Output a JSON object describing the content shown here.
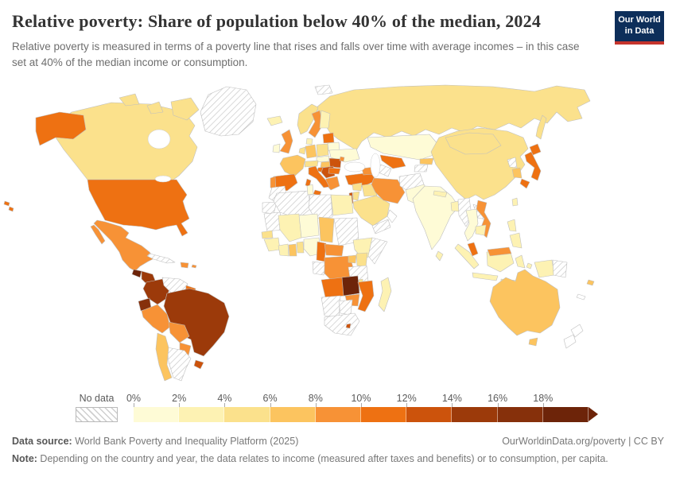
{
  "header": {
    "title": "Relative poverty: Share of population below 40% of the median, 2024",
    "subtitle": "Relative poverty is measured in terms of a poverty line that rises and falls over time with average incomes – in this case set at 40% of the median income or consumption."
  },
  "logo": {
    "line1": "Our World",
    "line2": "in Data",
    "bg_color": "#0d2e5a",
    "accent_color": "#c5342c"
  },
  "footer": {
    "datasource_label": "Data source:",
    "datasource_text": " World Bank Poverty and Inequality Platform (2025)",
    "right_text": "OurWorldinData.org/poverty | CC BY",
    "note_label": "Note:",
    "note_text": " Depending on the country and year, the data relates to income (measured after taxes and benefits) or to consumption, per capita."
  },
  "chart_data": {
    "type": "choropleth-map",
    "title": "Relative poverty: Share of population below 40% of the median, 2024",
    "unit": "% of population below 40% of median income/consumption",
    "legend": {
      "position": "bottom",
      "no_data_label": "No data",
      "boundary_labels": [
        "0%",
        "2%",
        "4%",
        "6%",
        "8%",
        "10%",
        "12%",
        "14%",
        "16%",
        "18%"
      ],
      "bins": [
        {
          "range": "0–2%",
          "color": "#fefbd6"
        },
        {
          "range": "2–4%",
          "color": "#fdf2b3"
        },
        {
          "range": "4–6%",
          "color": "#fbe18c"
        },
        {
          "range": "6–8%",
          "color": "#fcc45f"
        },
        {
          "range": "8–10%",
          "color": "#f79236"
        },
        {
          "range": "10–12%",
          "color": "#ee7112"
        },
        {
          "range": "12–14%",
          "color": "#cc530c"
        },
        {
          "range": "14–16%",
          "color": "#9c3a0a"
        },
        {
          "range": "16–18%",
          "color": "#86300b"
        },
        {
          "range": "18%+",
          "color": "#6d2409"
        }
      ]
    }
  },
  "map": {
    "regions": {
      "greenland": {
        "label": "Greenland",
        "value": "No data",
        "color": "nodata"
      },
      "canada": {
        "label": "Canada",
        "value": "4–6%",
        "color": "#fbe18c"
      },
      "alaska": {
        "label": "United States (Alaska)",
        "value": "10–12%",
        "color": "#ee7112"
      },
      "usa": {
        "label": "United States",
        "value": "10–12%",
        "color": "#ee7112"
      },
      "hawaii": {
        "label": "United States (Hawaii)",
        "value": "10–12%",
        "color": "#ee7112"
      },
      "mexico": {
        "label": "Mexico",
        "value": "8–10%",
        "color": "#f79236"
      },
      "guatemala": {
        "label": "Guatemala",
        "value": "18%+",
        "color": "#6d2409"
      },
      "honduras-nicaragua": {
        "label": "Honduras / Nicaragua",
        "value": "14–16%",
        "color": "#9c3a0a"
      },
      "costa-rica": {
        "label": "Costa Rica",
        "value": "12–14%",
        "color": "#cc530c"
      },
      "panama": {
        "label": "Panama",
        "value": "18%+",
        "color": "#6d2409"
      },
      "cuba": {
        "label": "Cuba",
        "value": "No data",
        "color": "nodata"
      },
      "hispaniola": {
        "label": "Dominican Republic / Haiti",
        "value": "8–10%",
        "color": "#f79236"
      },
      "puerto-rico": {
        "label": "Puerto Rico",
        "value": "8–10%",
        "color": "#f79236"
      },
      "colombia": {
        "label": "Colombia",
        "value": "14–16%",
        "color": "#9c3a0a"
      },
      "venezuela": {
        "label": "Venezuela",
        "value": "No data",
        "color": "nodata"
      },
      "guyana": {
        "label": "Guyana / Suriname",
        "value": "10–12%",
        "color": "#ee7112"
      },
      "ecuador": {
        "label": "Ecuador",
        "value": "16–18%",
        "color": "#86300b"
      },
      "peru": {
        "label": "Peru",
        "value": "8–10%",
        "color": "#f79236"
      },
      "brazil": {
        "label": "Brazil",
        "value": "14–16%",
        "color": "#9c3a0a"
      },
      "bolivia": {
        "label": "Bolivia",
        "value": "8–10%",
        "color": "#f79236"
      },
      "paraguay": {
        "label": "Paraguay",
        "value": "8–10%",
        "color": "#f79236"
      },
      "uruguay": {
        "label": "Uruguay",
        "value": "12–14%",
        "color": "#cc530c"
      },
      "chile": {
        "label": "Chile",
        "value": "6–8%",
        "color": "#fcc45f"
      },
      "argentina": {
        "label": "Argentina",
        "value": "No data",
        "color": "nodata"
      },
      "iceland": {
        "label": "Iceland",
        "value": "2–4%",
        "color": "#fdf2b3"
      },
      "norway": {
        "label": "Norway",
        "value": "4–6%",
        "color": "#fbe18c"
      },
      "sweden": {
        "label": "Sweden",
        "value": "8–10%",
        "color": "#f79236"
      },
      "finland": {
        "label": "Finland",
        "value": "2–4%",
        "color": "#fdf2b3"
      },
      "denmark": {
        "label": "Denmark",
        "value": "2–4%",
        "color": "#fdf2b3"
      },
      "uk": {
        "label": "United Kingdom",
        "value": "8–10%",
        "color": "#f79236"
      },
      "ireland": {
        "label": "Ireland",
        "value": "0–2%",
        "color": "#fefbd6"
      },
      "france": {
        "label": "France",
        "value": "6–8%",
        "color": "#fcc45f"
      },
      "spain": {
        "label": "Spain",
        "value": "10–12%",
        "color": "#ee7112"
      },
      "portugal": {
        "label": "Portugal",
        "value": "8–10%",
        "color": "#f79236"
      },
      "germany": {
        "label": "Germany",
        "value": "6–8%",
        "color": "#fcc45f"
      },
      "benelux": {
        "label": "Belgium / Netherlands",
        "value": "4–6%",
        "color": "#fbe18c"
      },
      "poland": {
        "label": "Poland",
        "value": "4–6%",
        "color": "#fbe18c"
      },
      "czech-slovakia": {
        "label": "Czechia / Slovakia",
        "value": "0–2%",
        "color": "#fefbd6"
      },
      "austria-switzerland": {
        "label": "Austria / Switzerland",
        "value": "4–6%",
        "color": "#fbe18c"
      },
      "hungary": {
        "label": "Hungary",
        "value": "6–8%",
        "color": "#fcc45f"
      },
      "romania": {
        "label": "Romania",
        "value": "12–14%",
        "color": "#cc530c"
      },
      "moldova": {
        "label": "Moldova",
        "value": "8–10%",
        "color": "#f79236"
      },
      "ukraine": {
        "label": "Ukraine",
        "value": "0–2%",
        "color": "#fefbd6"
      },
      "belarus": {
        "label": "Belarus",
        "value": "0–2%",
        "color": "#fefbd6"
      },
      "baltics": {
        "label": "Baltic states",
        "value": "10–12%",
        "color": "#ee7112"
      },
      "croatia": {
        "label": "Croatia",
        "value": "10–12%",
        "color": "#ee7112"
      },
      "serbia-balkans": {
        "label": "Serbia / Western Balkans",
        "value": "12–14%",
        "color": "#cc530c"
      },
      "greece": {
        "label": "Greece",
        "value": "8–10%",
        "color": "#f79236"
      },
      "bulgaria": {
        "label": "Bulgaria",
        "value": "10–12%",
        "color": "#ee7112"
      },
      "italy": {
        "label": "Italy",
        "value": "10–12%",
        "color": "#ee7112"
      },
      "russia": {
        "label": "Russia",
        "value": "4–6%",
        "color": "#fbe18c"
      },
      "svalbard": {
        "label": "Svalbard",
        "value": "No data",
        "color": "nodata"
      },
      "turkey": {
        "label": "Turkey",
        "value": "10–12%",
        "color": "#ee7112"
      },
      "caucasus": {
        "label": "Georgia / Armenia / Azerbaijan",
        "value": "8–10%",
        "color": "#f79236"
      },
      "syria": {
        "label": "Syria",
        "value": "4–6%",
        "color": "#fbe18c"
      },
      "iraq": {
        "label": "Iraq",
        "value": "4–6%",
        "color": "#fbe18c"
      },
      "israel": {
        "label": "Israel",
        "value": "12–14%",
        "color": "#cc530c"
      },
      "jordan": {
        "label": "Jordan",
        "value": "4–6%",
        "color": "#fbe18c"
      },
      "saudi-arabia": {
        "label": "Saudi Arabia",
        "value": "4–6%",
        "color": "#fbe18c"
      },
      "yemen": {
        "label": "Yemen",
        "value": "No data",
        "color": "nodata"
      },
      "oman": {
        "label": "Oman",
        "value": "No data",
        "color": "#ffffff"
      },
      "iran": {
        "label": "Iran",
        "value": "8–10%",
        "color": "#f79236"
      },
      "kazakhstan": {
        "label": "Kazakhstan",
        "value": "0–2%",
        "color": "#fefbd6"
      },
      "uzbekistan": {
        "label": "Uzbekistan",
        "value": "10–12%",
        "color": "#ee7112"
      },
      "turkmenistan": {
        "label": "Turkmenistan",
        "value": "No data",
        "color": "nodata"
      },
      "kyrgyzstan": {
        "label": "Kyrgyzstan",
        "value": "6–8%",
        "color": "#fcc45f"
      },
      "tajikistan": {
        "label": "Tajikistan",
        "value": "No data",
        "color": "nodata"
      },
      "afghanistan": {
        "label": "Afghanistan",
        "value": "No data",
        "color": "nodata"
      },
      "pakistan": {
        "label": "Pakistan",
        "value": "0–2%",
        "color": "#fefbd6"
      },
      "india": {
        "label": "India",
        "value": "0–2%",
        "color": "#fefbd6"
      },
      "nepal": {
        "label": "Nepal",
        "value": "2–4%",
        "color": "#fdf2b3"
      },
      "bangladesh": {
        "label": "Bangladesh",
        "value": "2–4%",
        "color": "#fdf2b3"
      },
      "sri-lanka": {
        "label": "Sri Lanka",
        "value": "2–4%",
        "color": "#fdf2b3"
      },
      "myanmar": {
        "label": "Myanmar",
        "value": "No data",
        "color": "nodata"
      },
      "thailand": {
        "label": "Thailand",
        "value": "0–2%",
        "color": "#fefbd6"
      },
      "laos": {
        "label": "Laos",
        "value": "No data",
        "color": "nodata"
      },
      "vietnam": {
        "label": "Vietnam",
        "value": "8–10%",
        "color": "#f79236"
      },
      "cambodia": {
        "label": "Cambodia",
        "value": "2–4%",
        "color": "#fdf2b3"
      },
      "malaysia": {
        "label": "Malaysia",
        "value": "10–12%",
        "color": "#ee7112"
      },
      "malaysia-borneo": {
        "label": "Malaysia (Borneo)",
        "value": "8–10%",
        "color": "#f79236"
      },
      "indonesia": {
        "label": "Indonesia",
        "value": "2–4%",
        "color": "#fdf2b3"
      },
      "philippines": {
        "label": "Philippines",
        "value": "2–4%",
        "color": "#fdf2b3"
      },
      "china": {
        "label": "China",
        "value": "4–6%",
        "color": "#fbe18c"
      },
      "mongolia": {
        "label": "Mongolia",
        "value": "4–6%",
        "color": "#fbe18c"
      },
      "north-korea": {
        "label": "North Korea",
        "value": "No data",
        "color": "nodata"
      },
      "south-korea": {
        "label": "South Korea",
        "value": "6–8%",
        "color": "#fcc45f"
      },
      "japan": {
        "label": "Japan",
        "value": "10–12%",
        "color": "#ee7112"
      },
      "taiwan": {
        "label": "Taiwan",
        "value": "2–4%",
        "color": "#fdf2b3"
      },
      "papua-new-guinea": {
        "label": "Papua New Guinea",
        "value": "No data",
        "color": "nodata"
      },
      "australia": {
        "label": "Australia",
        "value": "6–8%",
        "color": "#fcc45f"
      },
      "new-zealand": {
        "label": "New Zealand",
        "value": "No data",
        "color": "#ffffff"
      },
      "fiji": {
        "label": "Fiji",
        "value": "6–8%",
        "color": "#fcc45f"
      },
      "new-caledonia": {
        "label": "New Caledonia",
        "value": "No data",
        "color": "#ffffff"
      },
      "morocco": {
        "label": "Morocco",
        "value": "No data",
        "color": "nodata"
      },
      "western-sahara": {
        "label": "Western Sahara",
        "value": "No data",
        "color": "nodata"
      },
      "algeria": {
        "label": "Algeria",
        "value": "No data",
        "color": "nodata"
      },
      "tunisia": {
        "label": "Tunisia",
        "value": "0–2%",
        "color": "#fefbd6"
      },
      "libya": {
        "label": "Libya",
        "value": "No data",
        "color": "nodata"
      },
      "egypt": {
        "label": "Egypt",
        "value": "2–4%",
        "color": "#fdf2b3"
      },
      "mauritania": {
        "label": "Mauritania",
        "value": "No data",
        "color": "nodata"
      },
      "mali": {
        "label": "Mali",
        "value": "2–4%",
        "color": "#fdf2b3"
      },
      "niger": {
        "label": "Niger",
        "value": "0–2%",
        "color": "#fefbd6"
      },
      "chad": {
        "label": "Chad",
        "value": "6–8%",
        "color": "#fcc45f"
      },
      "sudan": {
        "label": "Sudan",
        "value": "No data",
        "color": "nodata"
      },
      "ethiopia": {
        "label": "Ethiopia",
        "value": "2–4%",
        "color": "#fdf2b3"
      },
      "somalia": {
        "label": "Somalia",
        "value": "No data",
        "color": "nodata"
      },
      "senegal": {
        "label": "Senegal",
        "value": "4–6%",
        "color": "#fbe18c"
      },
      "guinea": {
        "label": "Guinea",
        "value": "2–4%",
        "color": "#fdf2b3"
      },
      "ivory-coast": {
        "label": "Côte d'Ivoire",
        "value": "2–4%",
        "color": "#fdf2b3"
      },
      "ghana": {
        "label": "Ghana",
        "value": "6–8%",
        "color": "#fcc45f"
      },
      "togo-benin": {
        "label": "Togo / Benin",
        "value": "4–6%",
        "color": "#fbe18c"
      },
      "nigeria": {
        "label": "Nigeria",
        "value": "0–2%",
        "color": "#fefbd6"
      },
      "cameroon": {
        "label": "Cameroon",
        "value": "10–12%",
        "color": "#ee7112"
      },
      "central-african-republic": {
        "label": "Central African Republic",
        "value": "8–10%",
        "color": "#f79236"
      },
      "gabon-congo": {
        "label": "Gabon / Congo",
        "value": "No data",
        "color": "nodata"
      },
      "drc": {
        "label": "Democratic Republic of Congo",
        "value": "8–10%",
        "color": "#f79236"
      },
      "uganda": {
        "label": "Uganda",
        "value": "6–8%",
        "color": "#fcc45f"
      },
      "kenya": {
        "label": "Kenya",
        "value": "4–6%",
        "color": "#fbe18c"
      },
      "tanzania": {
        "label": "Tanzania",
        "value": "No data",
        "color": "nodata"
      },
      "angola": {
        "label": "Angola",
        "value": "10–12%",
        "color": "#ee7112"
      },
      "zambia": {
        "label": "Zambia",
        "value": "18%+",
        "color": "#6d2409"
      },
      "malawi": {
        "label": "Malawi",
        "value": "4–6%",
        "color": "#fbe18c"
      },
      "mozambique": {
        "label": "Mozambique",
        "value": "10–12%",
        "color": "#ee7112"
      },
      "zimbabwe": {
        "label": "Zimbabwe",
        "value": "8–10%",
        "color": "#f79236"
      },
      "namibia": {
        "label": "Namibia",
        "value": "No data",
        "color": "nodata"
      },
      "botswana": {
        "label": "Botswana",
        "value": "No data",
        "color": "nodata"
      },
      "south-africa": {
        "label": "South Africa",
        "value": "No data",
        "color": "nodata"
      },
      "lesotho": {
        "label": "Lesotho",
        "value": "12–14%",
        "color": "#cc530c"
      },
      "madagascar": {
        "label": "Madagascar",
        "value": "2–4%",
        "color": "#fdf2b3"
      }
    }
  }
}
